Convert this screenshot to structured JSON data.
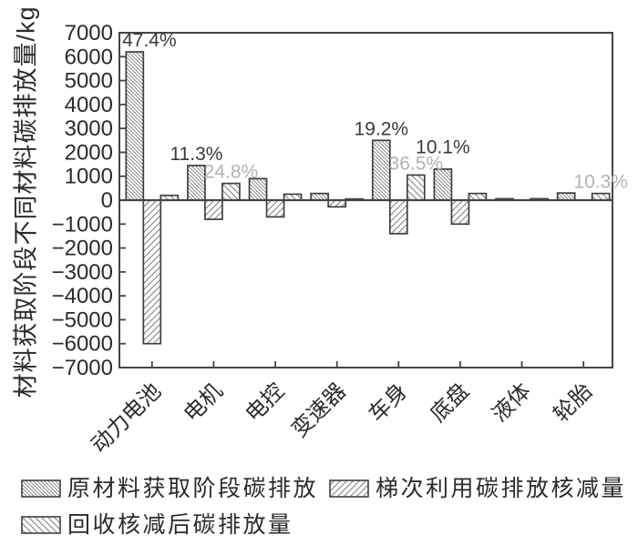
{
  "colors": {
    "axis": "#454545",
    "bar_stroke": "#3f3f3f",
    "hatch_line": "#8f8f8f",
    "tick_text": "#2b2b2b",
    "annotation_dark": "#3a3a3a",
    "annotation_gray": "#b3b3b3",
    "background": "#ffffff"
  },
  "chart_data": {
    "type": "bar",
    "title": "",
    "xlabel": "",
    "ylabel": "材料获取阶段不同材料碳排放量/kg",
    "ylim": [
      -7000,
      7000
    ],
    "ytick_step": 1000,
    "grid": false,
    "legend_position": "bottom",
    "categories": [
      "动力电池",
      "电机",
      "电控",
      "变速器",
      "车身",
      "底盘",
      "液体",
      "轮胎"
    ],
    "series": [
      {
        "name": "原材料获取阶段碳排放",
        "hatch": "dense-backslash",
        "values": [
          6200,
          1450,
          900,
          280,
          2500,
          1300,
          60,
          300
        ]
      },
      {
        "name": "梯次利用碳排放核减量",
        "hatch": "forward-slash",
        "values": [
          -6000,
          -800,
          -700,
          -280,
          -1400,
          -1000,
          0,
          0
        ]
      },
      {
        "name": "回收核减后碳排放量",
        "hatch": "sparse-backslash",
        "values": [
          200,
          700,
          250,
          50,
          1050,
          280,
          60,
          280
        ]
      }
    ],
    "annotations": [
      {
        "text": "47.4%",
        "category": 0,
        "series": 0,
        "color": "dark"
      },
      {
        "text": "11.3%",
        "category": 1,
        "series": 0,
        "color": "dark"
      },
      {
        "text": "24.8%",
        "category": 1,
        "series": 2,
        "color": "gray"
      },
      {
        "text": "19.2%",
        "category": 4,
        "series": 0,
        "color": "dark"
      },
      {
        "text": "36.5%",
        "category": 4,
        "series": 2,
        "color": "gray"
      },
      {
        "text": "10.1%",
        "category": 5,
        "series": 0,
        "color": "dark"
      },
      {
        "text": "10.3%",
        "category": 7,
        "series": 2,
        "color": "gray"
      }
    ]
  }
}
